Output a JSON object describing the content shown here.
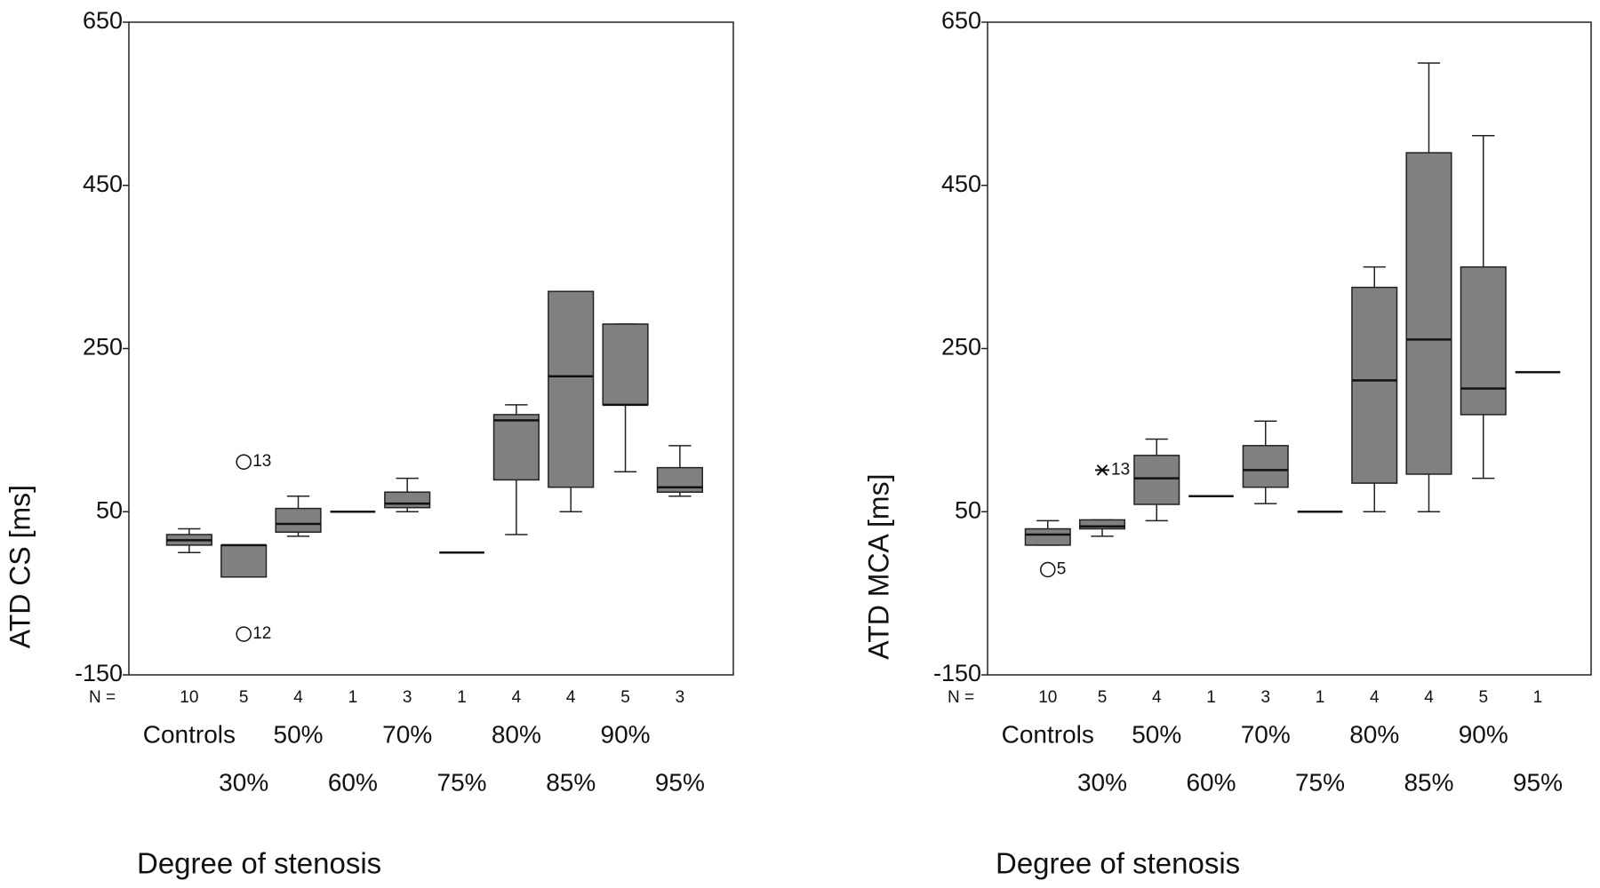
{
  "chart_data": [
    {
      "type": "box",
      "ylabel": "ATD CS [ms]",
      "xlabel": "Degree of stenosis",
      "n_label": "N =",
      "categories": [
        "Controls",
        "30%",
        "50%",
        "60%",
        "70%",
        "75%",
        "80%",
        "85%",
        "90%",
        "95%"
      ],
      "n": [
        10,
        5,
        4,
        1,
        3,
        1,
        4,
        4,
        5,
        3
      ],
      "whislo": [
        0,
        -30,
        20,
        50,
        50,
        0,
        22,
        50,
        99,
        69
      ],
      "q1": [
        9,
        -30,
        25,
        50,
        55,
        0,
        89,
        80,
        181,
        74
      ],
      "median": [
        15,
        9,
        35,
        50,
        60,
        0,
        162,
        216,
        181,
        80
      ],
      "q3": [
        22,
        9,
        54,
        50,
        74,
        0,
        169,
        320,
        280,
        104
      ],
      "whishi": [
        29,
        9,
        69,
        50,
        91,
        0,
        181,
        320,
        280,
        131
      ],
      "outliers": [
        {
          "category": "30%",
          "value": 111,
          "label": "13",
          "marker": "circle"
        },
        {
          "category": "30%",
          "value": -100,
          "label": "12",
          "marker": "circle"
        }
      ],
      "color": "#808080",
      "ylim": [
        -150,
        650
      ],
      "yticks": [
        -150,
        50,
        250,
        450,
        650
      ]
    },
    {
      "type": "box",
      "ylabel": "ATD MCA [ms]",
      "xlabel": "Degree of stenosis",
      "n_label": "N =",
      "categories": [
        "Controls",
        "30%",
        "50%",
        "60%",
        "70%",
        "75%",
        "80%",
        "85%",
        "90%",
        "95%"
      ],
      "n": [
        10,
        5,
        4,
        1,
        3,
        1,
        4,
        4,
        5,
        1
      ],
      "whislo": [
        9,
        20,
        39,
        69,
        60,
        50,
        50,
        50,
        91,
        221
      ],
      "q1": [
        9,
        29,
        59,
        69,
        80,
        50,
        85,
        96,
        169,
        221
      ],
      "median": [
        22,
        32,
        91,
        69,
        101,
        50,
        211,
        261,
        201,
        221
      ],
      "q3": [
        29,
        40,
        119,
        69,
        131,
        50,
        325,
        490,
        350,
        221
      ],
      "whishi": [
        39,
        40,
        139,
        69,
        161,
        50,
        350,
        600,
        511,
        221
      ],
      "outliers": [
        {
          "category": "Controls",
          "value": -21,
          "label": "5",
          "marker": "circle"
        },
        {
          "category": "30%",
          "value": 101,
          "label": "13",
          "marker": "star"
        }
      ],
      "color": "#808080",
      "ylim": [
        -150,
        650
      ],
      "yticks": [
        -150,
        50,
        250,
        450,
        650
      ]
    }
  ]
}
